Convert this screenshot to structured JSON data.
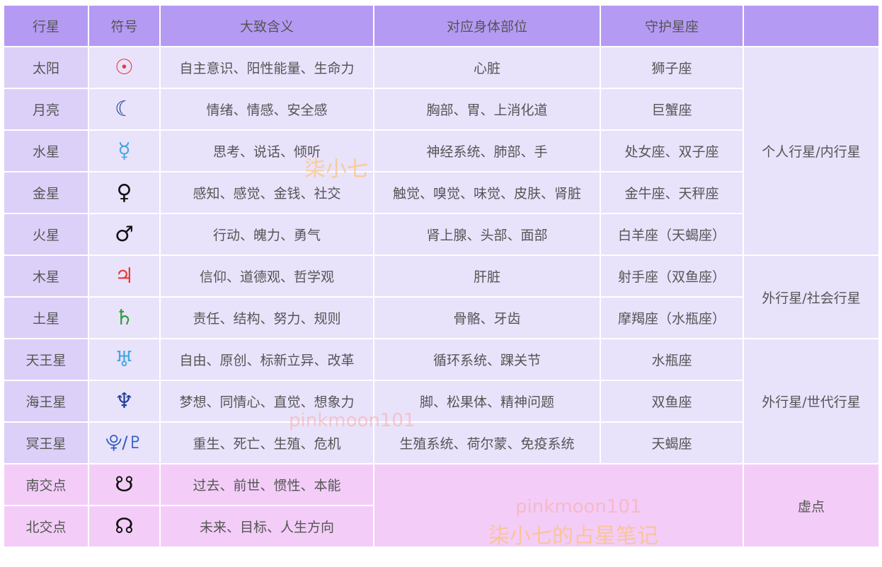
{
  "headers": [
    "行星",
    "符号",
    "大致含义",
    "对应身体部位",
    "守护星座",
    ""
  ],
  "rows": [
    {
      "name": "太阳",
      "symbol": "☉",
      "symbol_color": "#e53935",
      "meaning": "自主意识、阳性能量、生命力",
      "body": "心脏",
      "ruler": "狮子座"
    },
    {
      "name": "月亮",
      "symbol": "☾",
      "symbol_color": "#1e3f9a",
      "meaning": "情绪、情感、安全感",
      "body": "胸部、胃、上消化道",
      "ruler": "巨蟹座"
    },
    {
      "name": "水星",
      "symbol": "☿",
      "symbol_color": "#45a6e3",
      "meaning": "思考、说话、倾听",
      "body": "神经系统、肺部、手",
      "ruler": "处女座、双子座"
    },
    {
      "name": "金星",
      "symbol": "♀",
      "symbol_color": "#111111",
      "meaning": "感知、感觉、金钱、社交",
      "body": "触觉、嗅觉、味觉、皮肤、肾脏",
      "ruler": "金牛座、天秤座"
    },
    {
      "name": "火星",
      "symbol": "♂",
      "symbol_color": "#111111",
      "meaning": "行动、魄力、勇气",
      "body": "肾上腺、头部、面部",
      "ruler": "白羊座（天蝎座）"
    },
    {
      "name": "木星",
      "symbol": "♃",
      "symbol_color": "#e53935",
      "meaning": "信仰、道德观、哲学观",
      "body": "肝脏",
      "ruler": "射手座（双鱼座）"
    },
    {
      "name": "土星",
      "symbol": "♄",
      "symbol_color": "#2e9e3e",
      "meaning": "责任、结构、努力、规则",
      "body": "骨骼、牙齿",
      "ruler": "摩羯座（水瓶座）"
    },
    {
      "name": "天王星",
      "symbol": "♅",
      "symbol_color": "#45a6e3",
      "meaning": "自由、原创、标新立异、改革",
      "body": "循环系统、踝关节",
      "ruler": "水瓶座"
    },
    {
      "name": "海王星",
      "symbol": "♆",
      "symbol_color": "#1e3f9a",
      "meaning": "梦想、同情心、直觉、想象力",
      "body": "脚、松果体、精神问题",
      "ruler": "双鱼座"
    },
    {
      "name": "冥王星",
      "symbol": "⯓/♇",
      "symbol_color": "#2a5bc0",
      "meaning": "重生、死亡、生殖、危机",
      "body": "生殖系统、荷尔蒙、免疫系统",
      "ruler": "天蝎座"
    },
    {
      "name": "南交点",
      "symbol": "☋",
      "symbol_color": "#111111",
      "meaning": "过去、前世、惯性、本能"
    },
    {
      "name": "北交点",
      "symbol": "☊",
      "symbol_color": "#111111",
      "meaning": "未来、目标、人生方向"
    }
  ],
  "groups": [
    "个人行星/内行星",
    "外行星/社会行星",
    "外行星/世代行星",
    "虚点"
  ],
  "colors": {
    "header": "#b59af4",
    "name_column": "#dcd0f8",
    "cell": "#e9e2fb",
    "nodes": "#f3cdf8"
  },
  "watermarks": [
    "柒小七",
    "pinkmoon101",
    "pinkmoon101",
    "柒小七的占星笔记"
  ]
}
